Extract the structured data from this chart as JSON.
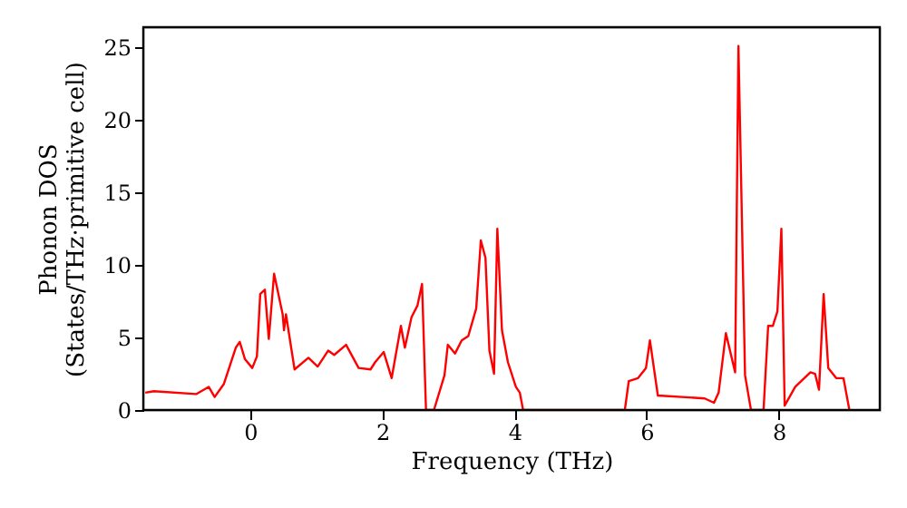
{
  "chart_data": {
    "type": "line",
    "xlabel": "Frequency (THz)",
    "ylabel": "Phonon DOS\n(States/THz·primitive cell)",
    "xlim": [
      -1.62,
      9.53
    ],
    "ylim": [
      0,
      26.4
    ],
    "xticks": [
      0,
      2,
      4,
      6,
      8
    ],
    "yticks": [
      0,
      5,
      10,
      15,
      20,
      25
    ],
    "grid": false,
    "marker": "none",
    "line_style": "solid",
    "series": [
      {
        "color": "#ff0000",
        "x": [
          -1.59,
          -1.46,
          -0.82,
          -0.63,
          -0.54,
          -0.4,
          -0.22,
          -0.16,
          -0.08,
          0.03,
          0.1,
          0.15,
          0.22,
          0.28,
          0.36,
          0.49,
          0.51,
          0.54,
          0.67,
          0.88,
          1.02,
          1.18,
          1.27,
          1.45,
          1.64,
          1.82,
          1.89,
          2.02,
          2.14,
          2.28,
          2.34,
          2.44,
          2.53,
          2.6,
          2.66,
          2.78,
          2.94,
          2.99,
          3.1,
          3.2,
          3.3,
          3.42,
          3.49,
          3.56,
          3.62,
          3.69,
          3.74,
          3.81,
          3.9,
          4.02,
          4.08,
          4.13,
          5.67,
          5.73,
          5.87,
          5.99,
          6.05,
          6.17,
          6.88,
          7.02,
          7.09,
          7.2,
          7.34,
          7.39,
          7.49,
          7.58,
          7.77,
          7.84,
          7.91,
          7.98,
          8.04,
          8.09,
          8.25,
          8.48,
          8.55,
          8.61,
          8.68,
          8.75,
          8.87,
          8.98,
          9.07
        ],
        "values": [
          1.2,
          1.3,
          1.1,
          1.6,
          0.9,
          1.8,
          4.3,
          4.7,
          3.5,
          2.9,
          3.7,
          8.0,
          8.3,
          4.9,
          9.4,
          6.6,
          5.5,
          6.6,
          2.8,
          3.6,
          3.0,
          4.1,
          3.8,
          4.5,
          2.9,
          2.8,
          3.3,
          4.0,
          2.2,
          5.8,
          4.3,
          6.4,
          7.2,
          8.7,
          0,
          0,
          2.4,
          4.5,
          3.9,
          4.8,
          5.1,
          7.0,
          11.7,
          10.5,
          4.1,
          2.5,
          12.5,
          5.5,
          3.3,
          1.6,
          1.2,
          0,
          0,
          2.0,
          2.2,
          2.9,
          4.8,
          1.0,
          0.8,
          0.5,
          1.2,
          5.3,
          2.6,
          25.1,
          2.4,
          0,
          0,
          5.8,
          5.8,
          6.8,
          12.5,
          0.3,
          1.6,
          2.6,
          2.5,
          1.4,
          8.0,
          2.9,
          2.2,
          2.2,
          0
        ]
      }
    ]
  }
}
